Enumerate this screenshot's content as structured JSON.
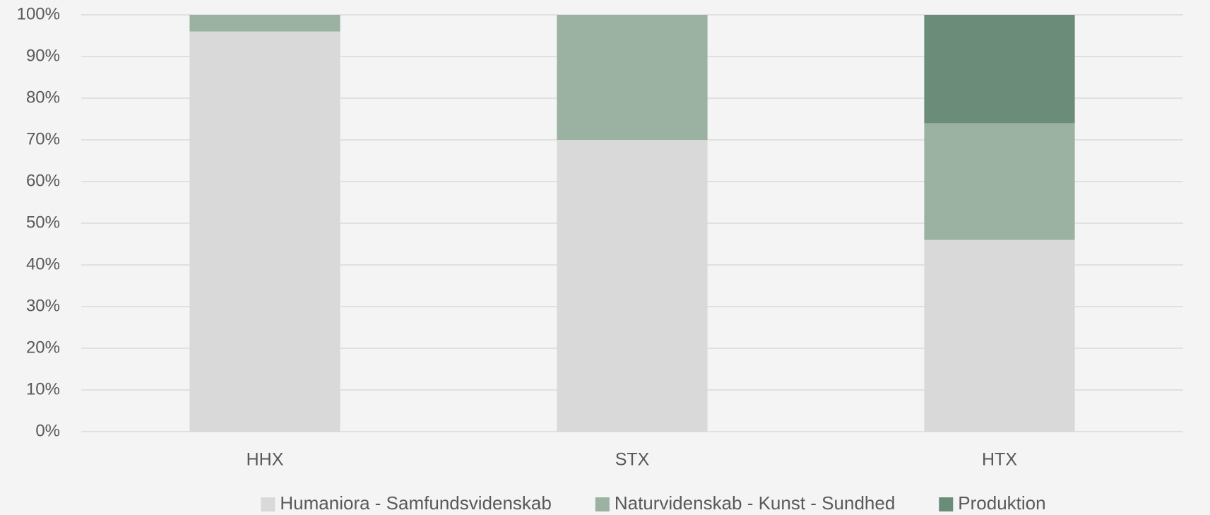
{
  "chart_data": {
    "type": "stacked_bar",
    "categories": [
      "HHX",
      "STX",
      "HTX"
    ],
    "series": [
      {
        "name": "Humaniora - Samfundsvidenskab",
        "color": "#d9d9d9",
        "values": [
          96,
          70,
          46
        ]
      },
      {
        "name": "Naturvidenskab - Kunst - Sundhed",
        "color": "#9bb2a2",
        "values": [
          4,
          30,
          28
        ]
      },
      {
        "name": "Produktion",
        "color": "#6a8c78",
        "values": [
          0,
          0,
          26
        ]
      }
    ],
    "ylim": [
      0,
      100
    ],
    "yticks": [
      {
        "value": 0,
        "label": "0%"
      },
      {
        "value": 10,
        "label": "10%"
      },
      {
        "value": 20,
        "label": "20%"
      },
      {
        "value": 30,
        "label": "30%"
      },
      {
        "value": 40,
        "label": "40%"
      },
      {
        "value": 50,
        "label": "50%"
      },
      {
        "value": 60,
        "label": "60%"
      },
      {
        "value": 70,
        "label": "70%"
      },
      {
        "value": 80,
        "label": "80%"
      },
      {
        "value": 90,
        "label": "90%"
      },
      {
        "value": 100,
        "label": "100%"
      }
    ],
    "grid": true,
    "legend": "bottom"
  }
}
